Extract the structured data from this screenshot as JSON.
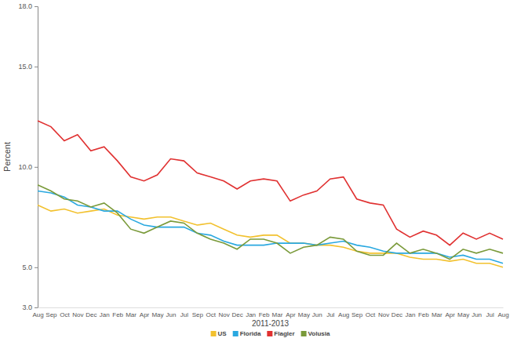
{
  "chart_data": {
    "type": "line",
    "x_label": "2011-2013",
    "y_label": "Percent",
    "categories": [
      "Aug",
      "Sep",
      "Oct",
      "Nov",
      "Dec",
      "Jan",
      "Feb",
      "Mar",
      "Apr",
      "May",
      "Jun",
      "Jul",
      "Sep",
      "Oct",
      "Nov",
      "Dec",
      "Jan",
      "Feb",
      "Mar",
      "Apr",
      "May",
      "Jun",
      "Jul",
      "Aug",
      "Sep",
      "Oct",
      "Nov",
      "Dec",
      "Jan",
      "Feb",
      "Mar",
      "Apr",
      "May",
      "Jun",
      "Jul",
      "Aug"
    ],
    "ylim": [
      3,
      18
    ],
    "yticks": [
      {
        "value": 3,
        "label": "3.0"
      },
      {
        "value": 5,
        "label": "5.0"
      },
      {
        "value": 10,
        "label": "10.0"
      },
      {
        "value": 15,
        "label": "15.0"
      },
      {
        "value": 18,
        "label": "18.0"
      }
    ],
    "grid": false,
    "legend": "bottom",
    "series": [
      {
        "name": "US",
        "color": "#f2c12e",
        "values": [
          8.1,
          7.8,
          7.9,
          7.7,
          7.8,
          7.9,
          7.6,
          7.5,
          7.4,
          7.5,
          7.5,
          7.3,
          7.1,
          7.2,
          6.9,
          6.6,
          6.5,
          6.6,
          6.6,
          6.2,
          6.2,
          6.1,
          6.1,
          6.0,
          5.8,
          5.7,
          5.7,
          5.7,
          5.5,
          5.4,
          5.4,
          5.3,
          5.4,
          5.2,
          5.2,
          5.0
        ]
      },
      {
        "name": "Florida",
        "color": "#29a8e0",
        "values": [
          8.8,
          8.7,
          8.5,
          8.1,
          8.0,
          7.8,
          7.8,
          7.4,
          7.1,
          7.0,
          7.0,
          7.0,
          6.7,
          6.6,
          6.3,
          6.1,
          6.1,
          6.1,
          6.2,
          6.2,
          6.2,
          6.1,
          6.2,
          6.3,
          6.1,
          6.0,
          5.8,
          5.7,
          5.7,
          5.7,
          5.7,
          5.5,
          5.6,
          5.4,
          5.4,
          5.2
        ]
      },
      {
        "name": "Flagler",
        "color": "#e03131",
        "values": [
          12.3,
          12.0,
          11.3,
          11.6,
          10.8,
          11.0,
          10.3,
          9.5,
          9.3,
          9.6,
          10.4,
          10.3,
          9.7,
          9.5,
          9.3,
          8.9,
          9.3,
          9.4,
          9.3,
          8.3,
          8.6,
          8.8,
          9.4,
          9.5,
          8.4,
          8.2,
          8.1,
          6.9,
          6.5,
          6.8,
          6.6,
          6.1,
          6.7,
          6.4,
          6.7,
          6.4
        ]
      },
      {
        "name": "Volusia",
        "color": "#7a9a3a",
        "values": [
          9.1,
          8.8,
          8.4,
          8.3,
          8.0,
          8.2,
          7.7,
          6.9,
          6.7,
          7.0,
          7.3,
          7.2,
          6.7,
          6.4,
          6.2,
          5.9,
          6.4,
          6.4,
          6.2,
          5.7,
          6.0,
          6.1,
          6.5,
          6.4,
          5.8,
          5.6,
          5.6,
          6.2,
          5.7,
          5.9,
          5.7,
          5.4,
          5.9,
          5.7,
          5.9,
          5.7
        ]
      }
    ]
  }
}
